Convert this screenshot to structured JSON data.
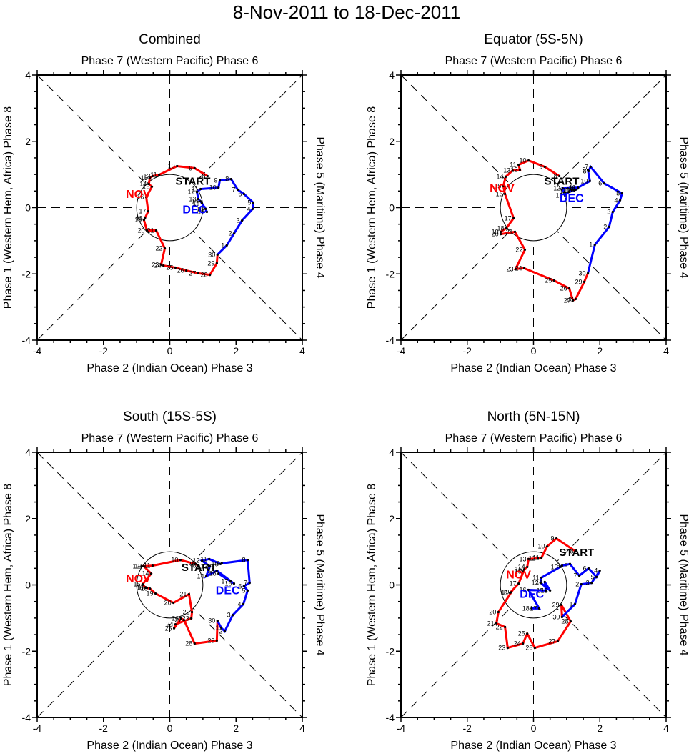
{
  "chart_data": {
    "type": "line",
    "title": "8-Nov-2011 to 18-Dec-2011",
    "xlim": [
      -4,
      4
    ],
    "ylim": [
      -4,
      4
    ],
    "xticks": [
      -4,
      -2,
      0,
      2,
      4
    ],
    "yticks": [
      -4,
      -2,
      0,
      2,
      4
    ],
    "labels": {
      "top": "Phase 7 (Western Pacific) Phase 6",
      "bottom": "Phase 2 (Indian Ocean) Phase 3",
      "left": "Phase 1 (Western Hem, Africa) Phase 8",
      "right": "Phase 5 (Maritime) Phase 4",
      "start": "START",
      "nov": "NOV",
      "dec": "DEC"
    },
    "colors": {
      "nov": "#ff0000",
      "dec": "#0000ff",
      "axes": "#000000"
    },
    "unit_circle_radius": 1,
    "panels": [
      {
        "name": "Combined",
        "series": [
          {
            "name": "NOV",
            "color": "#ff0000",
            "days": [
              8,
              9,
              10,
              11,
              12,
              13,
              14,
              15,
              16,
              17,
              18,
              19,
              20,
              21,
              22,
              23,
              24,
              25,
              26,
              27,
              28,
              29,
              30
            ],
            "x": [
              1.14,
              0.75,
              0.22,
              -0.32,
              -0.52,
              -0.6,
              -0.63,
              -0.54,
              -0.71,
              -0.65,
              -0.75,
              -0.78,
              -0.69,
              -0.41,
              -0.15,
              -0.26,
              -0.19,
              0.17,
              0.5,
              0.86,
              1.21,
              1.42,
              1.44
            ],
            "y": [
              0.95,
              1.19,
              1.25,
              0.99,
              0.95,
              0.9,
              0.71,
              0.63,
              0.32,
              -0.11,
              -0.32,
              -0.37,
              -0.69,
              -0.69,
              -1.23,
              -1.72,
              -1.75,
              -1.81,
              -1.9,
              -1.98,
              -2.03,
              -1.68,
              -1.42
            ]
          },
          {
            "name": "DEC",
            "color": "#0000ff",
            "days": [
              1,
              2,
              3,
              4,
              5,
              6,
              7,
              8,
              9,
              10,
              11,
              12,
              13,
              14,
              15,
              16,
              17
            ],
            "x": [
              1.72,
              1.94,
              2.18,
              2.5,
              2.52,
              2.24,
              2.05,
              1.85,
              1.51,
              1.47,
              0.93,
              0.82,
              0.86,
              0.93,
              0.97,
              1.08,
              1.12
            ],
            "y": [
              -1.14,
              -0.78,
              -0.39,
              -0.04,
              0.15,
              0.41,
              0.54,
              0.86,
              0.82,
              0.6,
              0.56,
              0.47,
              0.26,
              0.19,
              0.13,
              -0.04,
              -0.13
            ]
          }
        ],
        "month_labels": {
          "nov": [
            -0.95,
            0.42
          ],
          "dec": [
            0.75,
            -0.04
          ],
          "start": [
            0.7,
            0.82
          ]
        }
      },
      {
        "name": "Equator (5S-5N)",
        "series": [
          {
            "name": "NOV",
            "color": "#ff0000",
            "days": [
              8,
              9,
              10,
              11,
              12,
              13,
              14,
              15,
              16,
              17,
              18,
              19,
              20,
              21,
              22,
              23,
              24,
              25,
              26,
              27,
              28,
              29,
              30
            ],
            "x": [
              0.78,
              0.34,
              -0.15,
              -0.45,
              -0.41,
              -0.63,
              -0.84,
              -0.91,
              -0.86,
              -0.6,
              -0.82,
              -0.99,
              -0.99,
              -0.56,
              -0.26,
              -0.54,
              -0.28,
              0.62,
              1.08,
              1.19,
              1.27,
              1.53,
              1.64
            ],
            "y": [
              0.95,
              1.23,
              1.42,
              1.29,
              1.14,
              1.12,
              0.93,
              0.65,
              0.41,
              -0.32,
              -0.62,
              -0.73,
              -0.8,
              -0.73,
              -1.27,
              -1.85,
              -1.83,
              -2.2,
              -2.44,
              -2.8,
              -2.76,
              -2.24,
              -1.98
            ]
          },
          {
            "name": "DEC",
            "color": "#0000ff",
            "days": [
              1,
              2,
              3,
              4,
              5,
              6,
              7,
              8,
              9,
              10,
              11,
              12,
              13,
              14,
              15,
              16,
              17,
              18
            ],
            "x": [
              1.85,
              2.28,
              2.39,
              2.61,
              2.67,
              2.13,
              1.72,
              1.66,
              1.64,
              1.7,
              1.34,
              0.88,
              0.95,
              1.06,
              1.16,
              1.23,
              1.27,
              1.34
            ],
            "y": [
              -1.12,
              -0.58,
              -0.13,
              0.22,
              0.43,
              0.73,
              1.23,
              1.1,
              1.14,
              0.8,
              0.6,
              0.58,
              0.37,
              0.47,
              0.52,
              0.52,
              0.54,
              0.58
            ]
          }
        ],
        "month_labels": {
          "nov": [
            -0.95,
            0.6
          ],
          "dec": [
            1.15,
            0.3
          ],
          "start": [
            0.85,
            0.82
          ]
        }
      },
      {
        "name": "South (15S-5S)",
        "series": [
          {
            "name": "NOV",
            "color": "#ff0000",
            "days": [
              8,
              9,
              10,
              11,
              12,
              13,
              14,
              15,
              16,
              17,
              18,
              19,
              20,
              21,
              22,
              23,
              24,
              25,
              26,
              27,
              28,
              29,
              30
            ],
            "x": [
              0.86,
              0.78,
              0.32,
              -0.52,
              -0.84,
              -0.78,
              -0.56,
              -0.82,
              -0.73,
              -0.69,
              -0.6,
              -0.43,
              0.11,
              0.58,
              0.67,
              0.65,
              0.17,
              0.13,
              0.34,
              0.43,
              0.75,
              1.42,
              1.44
            ],
            "y": [
              0.58,
              0.63,
              0.75,
              0.58,
              0.56,
              0.56,
              0.34,
              0.02,
              -0.09,
              -0.09,
              -0.11,
              -0.26,
              -0.54,
              -0.28,
              -0.82,
              -1.01,
              -1.19,
              -1.31,
              -1.01,
              -1.06,
              -1.77,
              -1.68,
              -1.08
            ]
          },
          {
            "name": "DEC",
            "color": "#0000ff",
            "days": [
              1,
              2,
              3,
              4,
              5,
              6,
              7,
              8,
              9,
              10,
              11,
              12,
              13,
              14,
              15,
              16,
              17,
              18
            ],
            "x": [
              1.55,
              1.66,
              1.9,
              2.22,
              2.35,
              2.24,
              2.41,
              2.35,
              1.57,
              1.53,
              1.19,
              0.97,
              1.21,
              1.1,
              1.42,
              1.94,
              1.83,
              1.47
            ],
            "y": [
              -1.29,
              -1.4,
              -0.91,
              -0.58,
              -0.17,
              -0.04,
              0.06,
              0.75,
              0.65,
              0.63,
              0.78,
              0.73,
              0.56,
              0.26,
              0.43,
              0.04,
              0.11,
              0.34
            ]
          }
        ],
        "month_labels": {
          "nov": [
            -0.95,
            0.2
          ],
          "dec": [
            1.75,
            -0.15
          ],
          "start": [
            0.88,
            0.55
          ]
        }
      },
      {
        "name": "North (5N-15N)",
        "series": [
          {
            "name": "NOV",
            "color": "#ff0000",
            "days": [
              8,
              9,
              10,
              11,
              12,
              13,
              14,
              15,
              16,
              17,
              18,
              19,
              20,
              21,
              22,
              23,
              24,
              25,
              26,
              27,
              28,
              29,
              30
            ],
            "x": [
              1.27,
              0.69,
              0.41,
              0.24,
              0.13,
              -0.15,
              -0.19,
              -0.28,
              -0.3,
              -0.45,
              -0.71,
              -0.67,
              -1.06,
              -1.12,
              -0.86,
              -0.78,
              -0.32,
              -0.19,
              0.04,
              0.73,
              1.12,
              0.84,
              0.86
            ],
            "y": [
              1.01,
              1.4,
              1.16,
              0.82,
              0.8,
              0.78,
              0.54,
              0.47,
              0.41,
              0.04,
              -0.24,
              -0.22,
              -0.82,
              -1.16,
              -1.27,
              -1.9,
              -1.77,
              -1.47,
              -1.9,
              -1.7,
              -1.1,
              -0.6,
              -0.97
            ]
          },
          {
            "name": "DEC",
            "color": "#0000ff",
            "days": [
              1,
              2,
              3,
              4,
              5,
              6,
              7,
              8,
              9,
              10,
              11,
              12,
              13,
              14,
              15,
              16,
              17,
              18
            ],
            "x": [
              1.25,
              1.44,
              1.75,
              2.0,
              1.9,
              1.66,
              1.38,
              1.1,
              0.86,
              0.8,
              0.24,
              0.22,
              0.5,
              0.34,
              0.37,
              -0.15,
              0.17,
              -0.06
            ],
            "y": [
              -0.58,
              0.02,
              0.06,
              0.43,
              0.24,
              0.5,
              0.28,
              0.63,
              0.58,
              0.54,
              0.22,
              0.06,
              -0.17,
              0.09,
              -0.17,
              -0.15,
              -0.71,
              -0.71
            ]
          }
        ],
        "month_labels": {
          "nov": [
            -0.45,
            0.32
          ],
          "dec": [
            -0.05,
            -0.26
          ],
          "start": [
            1.3,
            1.0
          ]
        }
      }
    ]
  }
}
